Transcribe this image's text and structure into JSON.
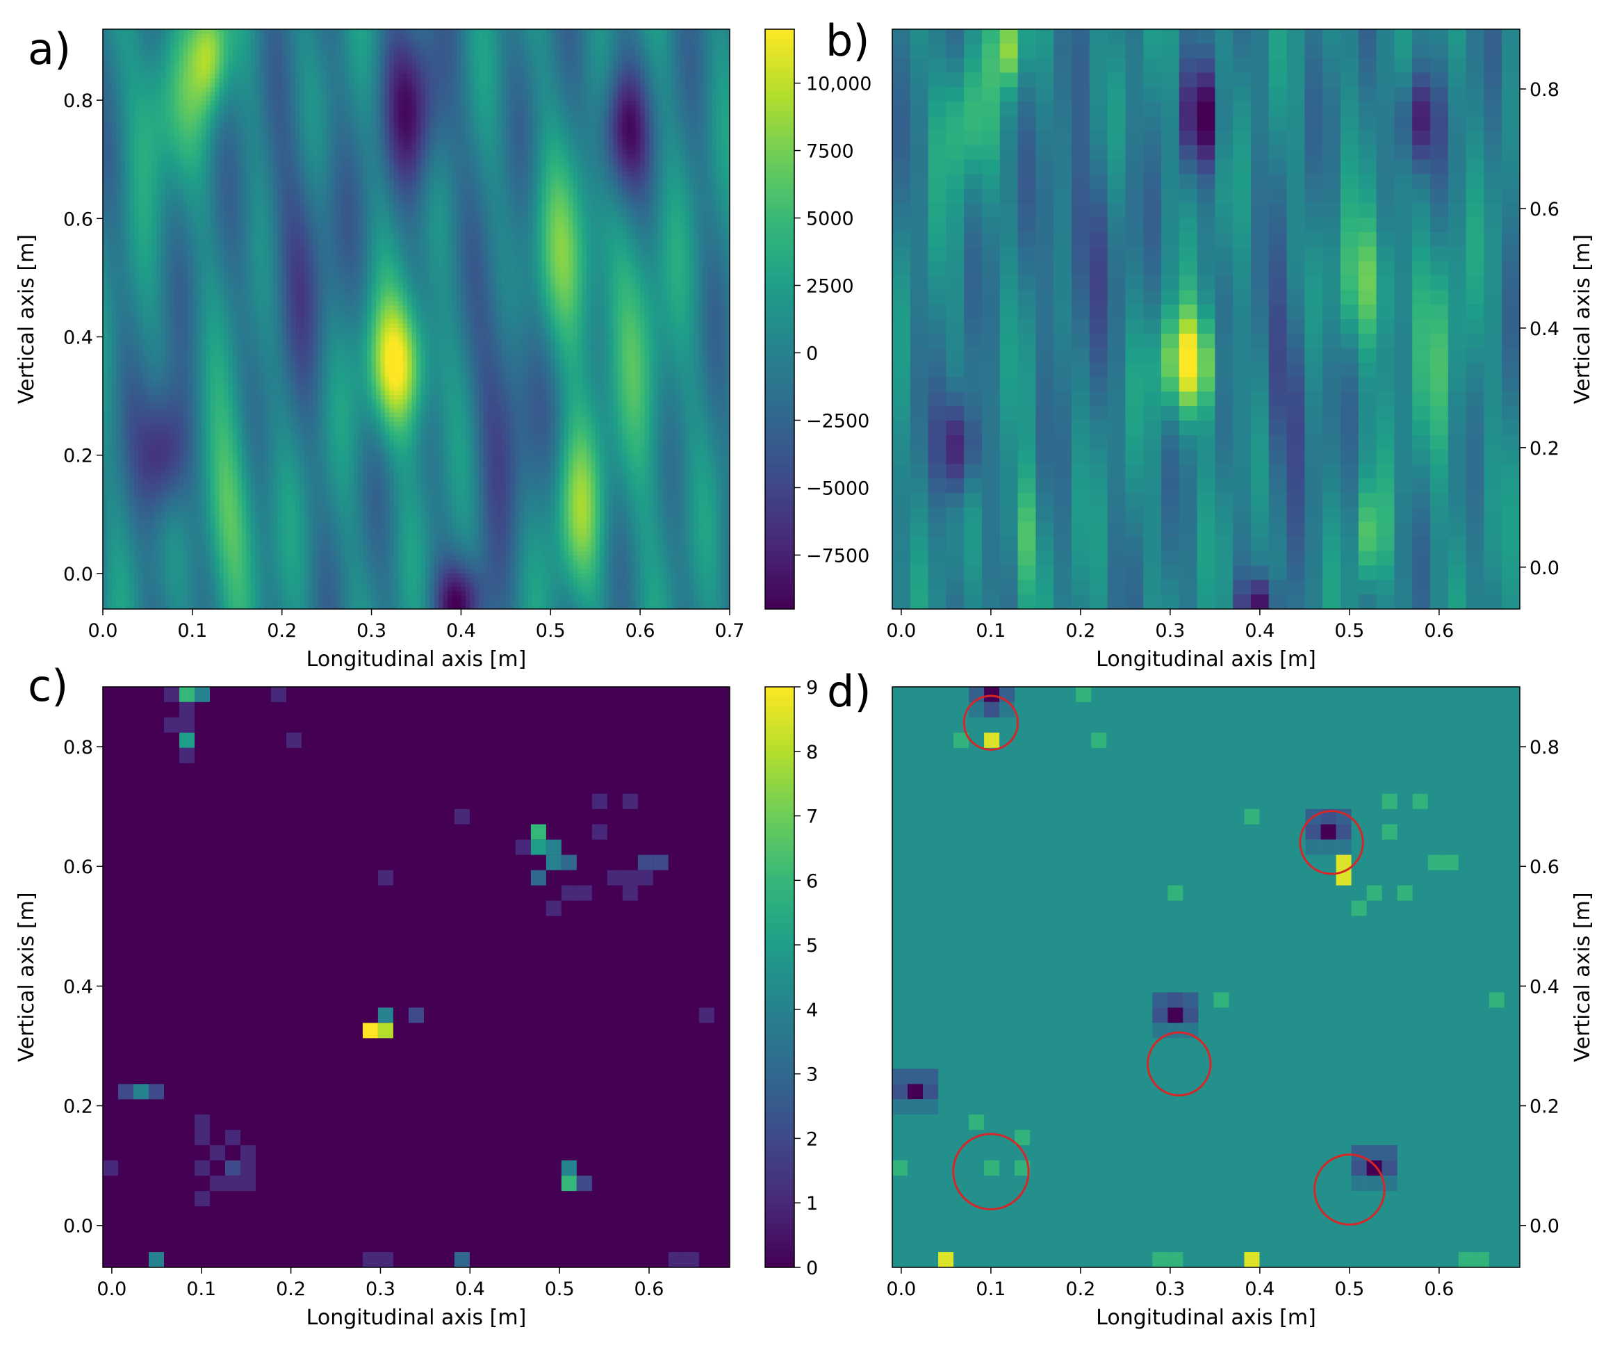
{
  "figure": {
    "description_panels": [
      "a)",
      "b)",
      "c)",
      "d)"
    ]
  },
  "colors": {
    "viridis_dark": "#440154",
    "viridis_mid": "#21918c",
    "viridis_bright": "#fde725",
    "marker_circle": "#d62728"
  },
  "chart_data": [
    {
      "type": "heatmap",
      "panel_label": "a)",
      "title": "",
      "style": "smooth",
      "xlabel": "Longitudinal axis  [m]",
      "ylabel": "Vertical axis [m]",
      "xlim": [
        0.0,
        0.7
      ],
      "ylim": [
        -0.06,
        0.92
      ],
      "xticks": [
        0.0,
        0.1,
        0.2,
        0.3,
        0.4,
        0.5,
        0.6,
        0.7
      ],
      "xtick_labels": [
        "0.0",
        "0.1",
        "0.2",
        "0.3",
        "0.4",
        "0.5",
        "0.6",
        "0.7"
      ],
      "yticks": [
        0.0,
        0.2,
        0.4,
        0.6,
        0.8
      ],
      "ytick_labels": [
        "0.0",
        "0.2",
        "0.4",
        "0.6",
        "0.8"
      ],
      "yaxis_side": "left",
      "vmin": -9500,
      "vmax": 12000,
      "features": [
        {
          "x": 0.33,
          "y": 0.35,
          "value": 11500,
          "sx": 0.025,
          "sy": 0.08
        },
        {
          "x": 0.52,
          "y": 0.52,
          "value": 6000,
          "sx": 0.03,
          "sy": 0.12
        },
        {
          "x": 0.53,
          "y": 0.1,
          "value": 6500,
          "sx": 0.02,
          "sy": 0.1
        },
        {
          "x": 0.14,
          "y": 0.1,
          "value": 6000,
          "sx": 0.025,
          "sy": 0.12
        },
        {
          "x": 0.12,
          "y": 0.88,
          "value": 9000,
          "sx": 0.015,
          "sy": 0.07
        },
        {
          "x": 0.07,
          "y": 0.8,
          "value": 5000,
          "sx": 0.025,
          "sy": 0.1
        },
        {
          "x": 0.07,
          "y": 0.2,
          "value": -8500,
          "sx": 0.02,
          "sy": 0.08
        },
        {
          "x": 0.35,
          "y": 0.78,
          "value": -7500,
          "sx": 0.025,
          "sy": 0.1
        },
        {
          "x": 0.58,
          "y": 0.75,
          "value": -9000,
          "sx": 0.02,
          "sy": 0.08
        },
        {
          "x": 0.4,
          "y": -0.05,
          "value": -8000,
          "sx": 0.02,
          "sy": 0.05
        },
        {
          "x": 0.22,
          "y": 0.55,
          "value": -4000,
          "sx": 0.03,
          "sy": 0.15
        },
        {
          "x": 0.45,
          "y": 0.3,
          "value": -5000,
          "sx": 0.025,
          "sy": 0.15
        },
        {
          "x": 0.6,
          "y": 0.35,
          "value": 3500,
          "sx": 0.03,
          "sy": 0.2
        }
      ]
    },
    {
      "type": "heatmap",
      "panel_label": "b)",
      "title": "",
      "style": "pixelated",
      "xlabel": "Longitudinal axis  [m]",
      "ylabel": "Vertical axis [m]",
      "xlim": [
        -0.01,
        0.69
      ],
      "ylim": [
        -0.07,
        0.9
      ],
      "grid": {
        "cols": 35,
        "rows": 40
      },
      "xticks": [
        0.0,
        0.1,
        0.2,
        0.3,
        0.4,
        0.5,
        0.6
      ],
      "xtick_labels": [
        "0.0",
        "0.1",
        "0.2",
        "0.3",
        "0.4",
        "0.5",
        "0.6"
      ],
      "yticks": [
        0.0,
        0.2,
        0.4,
        0.6,
        0.8
      ],
      "ytick_labels": [
        "0.0",
        "0.2",
        "0.4",
        "0.6",
        "0.8"
      ],
      "yaxis_side": "right",
      "vmin": -9500,
      "vmax": 12000,
      "features": [
        {
          "x": 0.32,
          "y": 0.34,
          "value": 11500,
          "sx": 0.022,
          "sy": 0.06
        },
        {
          "x": 0.52,
          "y": 0.47,
          "value": 6000,
          "sx": 0.025,
          "sy": 0.08
        },
        {
          "x": 0.525,
          "y": 0.05,
          "value": 6500,
          "sx": 0.01,
          "sy": 0.06
        },
        {
          "x": 0.135,
          "y": 0.05,
          "value": 6000,
          "sx": 0.012,
          "sy": 0.08
        },
        {
          "x": 0.12,
          "y": 0.87,
          "value": 8500,
          "sx": 0.012,
          "sy": 0.05
        },
        {
          "x": 0.07,
          "y": 0.75,
          "value": 5000,
          "sx": 0.02,
          "sy": 0.08
        },
        {
          "x": 0.065,
          "y": 0.2,
          "value": -9000,
          "sx": 0.015,
          "sy": 0.06
        },
        {
          "x": 0.335,
          "y": 0.75,
          "value": -8500,
          "sx": 0.015,
          "sy": 0.06
        },
        {
          "x": 0.575,
          "y": 0.75,
          "value": -8500,
          "sx": 0.015,
          "sy": 0.06
        },
        {
          "x": 0.4,
          "y": -0.06,
          "value": -7000,
          "sx": 0.015,
          "sy": 0.03
        },
        {
          "x": 0.2,
          "y": 0.55,
          "value": -4000,
          "sx": 0.03,
          "sy": 0.12
        },
        {
          "x": 0.43,
          "y": 0.3,
          "value": -5000,
          "sx": 0.02,
          "sy": 0.12
        },
        {
          "x": 0.6,
          "y": 0.35,
          "value": 3500,
          "sx": 0.025,
          "sy": 0.15
        }
      ]
    },
    {
      "type": "heatmap",
      "panel_label": "c)",
      "title": "",
      "style": "sparse",
      "xlabel": "Longitudinal axis [m]",
      "ylabel": "Vertical axis [m]",
      "xlim": [
        -0.01,
        0.69
      ],
      "ylim": [
        -0.07,
        0.9
      ],
      "grid": {
        "cols": 41,
        "rows": 38,
        "x0": -0.01,
        "dx": 0.01707,
        "y0": -0.07,
        "dy": 0.02553
      },
      "xticks": [
        0.0,
        0.1,
        0.2,
        0.3,
        0.4,
        0.5,
        0.6
      ],
      "xtick_labels": [
        "0.0",
        "0.1",
        "0.2",
        "0.3",
        "0.4",
        "0.5",
        "0.6"
      ],
      "yticks": [
        0.0,
        0.2,
        0.4,
        0.6,
        0.8
      ],
      "ytick_labels": [
        "0.0",
        "0.2",
        "0.4",
        "0.6",
        "0.8"
      ],
      "yaxis_side": "left",
      "vmin": 0,
      "vmax": 9,
      "background_value": 0,
      "cells": [
        [
          4,
          37,
          1
        ],
        [
          5,
          37,
          6
        ],
        [
          6,
          37,
          4
        ],
        [
          11,
          37,
          1
        ],
        [
          5,
          36,
          1
        ],
        [
          4,
          35,
          1
        ],
        [
          5,
          35,
          1
        ],
        [
          5,
          34,
          5
        ],
        [
          5,
          33,
          1
        ],
        [
          12,
          34,
          1
        ],
        [
          32,
          30,
          1
        ],
        [
          34,
          30,
          1
        ],
        [
          23,
          29,
          1
        ],
        [
          28,
          28,
          6
        ],
        [
          27,
          27,
          1
        ],
        [
          28,
          27,
          5
        ],
        [
          29,
          27,
          4
        ],
        [
          32,
          28,
          1
        ],
        [
          29,
          26,
          4
        ],
        [
          30,
          26,
          3
        ],
        [
          35,
          26,
          2
        ],
        [
          36,
          26,
          2
        ],
        [
          28,
          25,
          3
        ],
        [
          33,
          25,
          1
        ],
        [
          34,
          25,
          1
        ],
        [
          35,
          25,
          1
        ],
        [
          30,
          24,
          1
        ],
        [
          31,
          24,
          1
        ],
        [
          34,
          24,
          1
        ],
        [
          18,
          25,
          1
        ],
        [
          29,
          23,
          1
        ],
        [
          18,
          16,
          4
        ],
        [
          17,
          15,
          9
        ],
        [
          18,
          15,
          8
        ],
        [
          20,
          16,
          2
        ],
        [
          39,
          16,
          1
        ],
        [
          1,
          11,
          2
        ],
        [
          2,
          11,
          4
        ],
        [
          3,
          11,
          2
        ],
        [
          6,
          9,
          1
        ],
        [
          6,
          8,
          1
        ],
        [
          8,
          8,
          1
        ],
        [
          7,
          7,
          1
        ],
        [
          9,
          7,
          1
        ],
        [
          0,
          6,
          1
        ],
        [
          6,
          6,
          1
        ],
        [
          8,
          6,
          2
        ],
        [
          9,
          6,
          1
        ],
        [
          7,
          5,
          1
        ],
        [
          8,
          5,
          1
        ],
        [
          6,
          4,
          1
        ],
        [
          9,
          5,
          1
        ],
        [
          30,
          6,
          4
        ],
        [
          30,
          5,
          6
        ],
        [
          31,
          5,
          2
        ],
        [
          3,
          0,
          4
        ],
        [
          17,
          0,
          1
        ],
        [
          18,
          0,
          1
        ],
        [
          23,
          0,
          3
        ],
        [
          37,
          0,
          1
        ],
        [
          38,
          0,
          1
        ]
      ],
      "colorbar_ticks": [
        0,
        1,
        2,
        3,
        4,
        5,
        6,
        7,
        8,
        9
      ],
      "colorbar_tick_labels": [
        "0",
        "1",
        "2",
        "3",
        "4",
        "5",
        "6",
        "7",
        "8",
        "9"
      ]
    },
    {
      "type": "heatmap",
      "panel_label": "d)",
      "title": "",
      "style": "sparse",
      "xlabel": "Longitudinal axis [m]",
      "ylabel": "Vertical axis [m]",
      "xlim": [
        -0.01,
        0.69
      ],
      "ylim": [
        -0.07,
        0.9
      ],
      "grid": {
        "cols": 41,
        "rows": 38,
        "x0": -0.01,
        "dx": 0.01707,
        "y0": -0.07,
        "dy": 0.02553
      },
      "xticks": [
        0.0,
        0.1,
        0.2,
        0.3,
        0.4,
        0.5,
        0.6
      ],
      "xtick_labels": [
        "0.0",
        "0.1",
        "0.2",
        "0.3",
        "0.4",
        "0.5",
        "0.6"
      ],
      "yticks": [
        0.0,
        0.2,
        0.4,
        0.6,
        0.8
      ],
      "ytick_labels": [
        "0.0",
        "0.2",
        "0.4",
        "0.6",
        "0.8"
      ],
      "yaxis_side": "right",
      "vmin": 0,
      "vmax": 1,
      "background_value": 0.5,
      "cells": [
        [
          5,
          37,
          0.3
        ],
        [
          6,
          37,
          0.0
        ],
        [
          7,
          37,
          0.3
        ],
        [
          5,
          36,
          0.4
        ],
        [
          6,
          36,
          0.25
        ],
        [
          7,
          36,
          0.4
        ],
        [
          4,
          34,
          0.65
        ],
        [
          6,
          34,
          0.95
        ],
        [
          12,
          37,
          0.65
        ],
        [
          13,
          34,
          0.65
        ],
        [
          32,
          30,
          0.65
        ],
        [
          34,
          30,
          0.65
        ],
        [
          23,
          29,
          0.65
        ],
        [
          27,
          29,
          0.3
        ],
        [
          28,
          29,
          0.25
        ],
        [
          29,
          29,
          0.3
        ],
        [
          27,
          28,
          0.25
        ],
        [
          28,
          28,
          0.0
        ],
        [
          29,
          28,
          0.25
        ],
        [
          27,
          27,
          0.4
        ],
        [
          28,
          27,
          0.4
        ],
        [
          29,
          27,
          0.4
        ],
        [
          32,
          28,
          0.65
        ],
        [
          29,
          26,
          0.95
        ],
        [
          35,
          26,
          0.65
        ],
        [
          36,
          26,
          0.65
        ],
        [
          29,
          25,
          0.95
        ],
        [
          31,
          24,
          0.65
        ],
        [
          33,
          24,
          0.65
        ],
        [
          30,
          23,
          0.65
        ],
        [
          18,
          24,
          0.65
        ],
        [
          17,
          17,
          0.3
        ],
        [
          18,
          17,
          0.25
        ],
        [
          19,
          17,
          0.3
        ],
        [
          17,
          16,
          0.25
        ],
        [
          18,
          16,
          0.0
        ],
        [
          19,
          16,
          0.25
        ],
        [
          17,
          15,
          0.4
        ],
        [
          18,
          15,
          0.4
        ],
        [
          19,
          15,
          0.4
        ],
        [
          21,
          17,
          0.65
        ],
        [
          39,
          17,
          0.65
        ],
        [
          0,
          12,
          0.3
        ],
        [
          1,
          12,
          0.3
        ],
        [
          2,
          12,
          0.3
        ],
        [
          0,
          11,
          0.25
        ],
        [
          1,
          11,
          0.0
        ],
        [
          2,
          11,
          0.25
        ],
        [
          0,
          10,
          0.4
        ],
        [
          1,
          10,
          0.4
        ],
        [
          2,
          10,
          0.4
        ],
        [
          5,
          9,
          0.65
        ],
        [
          8,
          8,
          0.65
        ],
        [
          0,
          6,
          0.65
        ],
        [
          6,
          6,
          0.65
        ],
        [
          8,
          6,
          0.65
        ],
        [
          30,
          7,
          0.3
        ],
        [
          31,
          7,
          0.3
        ],
        [
          32,
          7,
          0.3
        ],
        [
          30,
          6,
          0.25
        ],
        [
          31,
          6,
          0.0
        ],
        [
          32,
          6,
          0.25
        ],
        [
          30,
          5,
          0.4
        ],
        [
          31,
          5,
          0.4
        ],
        [
          32,
          5,
          0.4
        ],
        [
          3,
          0,
          0.95
        ],
        [
          23,
          0,
          0.95
        ],
        [
          17,
          0,
          0.65
        ],
        [
          18,
          0,
          0.65
        ],
        [
          37,
          0,
          0.65
        ],
        [
          38,
          0,
          0.65
        ]
      ],
      "circles": [
        {
          "x": 0.1,
          "y": 0.84,
          "r": 0.03
        },
        {
          "x": 0.48,
          "y": 0.64,
          "r": 0.035
        },
        {
          "x": 0.31,
          "y": 0.27,
          "r": 0.035
        },
        {
          "x": 0.1,
          "y": 0.09,
          "r": 0.042
        },
        {
          "x": 0.5,
          "y": 0.06,
          "r": 0.039
        }
      ]
    }
  ],
  "colorbar_top": {
    "ticks": [
      10000,
      7500,
      5000,
      2500,
      0,
      -2500,
      -5000,
      -7500
    ],
    "tick_labels": [
      "10,000",
      "7500",
      "5000",
      "2500",
      "0",
      "−2500",
      "−5000",
      "−7500"
    ],
    "vmin": -9500,
    "vmax": 12000
  },
  "colorbar_bottom": {
    "ticks": [
      0,
      1,
      2,
      3,
      4,
      5,
      6,
      7,
      8,
      9
    ],
    "tick_labels": [
      "0",
      "1",
      "2",
      "3",
      "4",
      "5",
      "6",
      "7",
      "8",
      "9"
    ],
    "vmin": 0,
    "vmax": 9
  }
}
